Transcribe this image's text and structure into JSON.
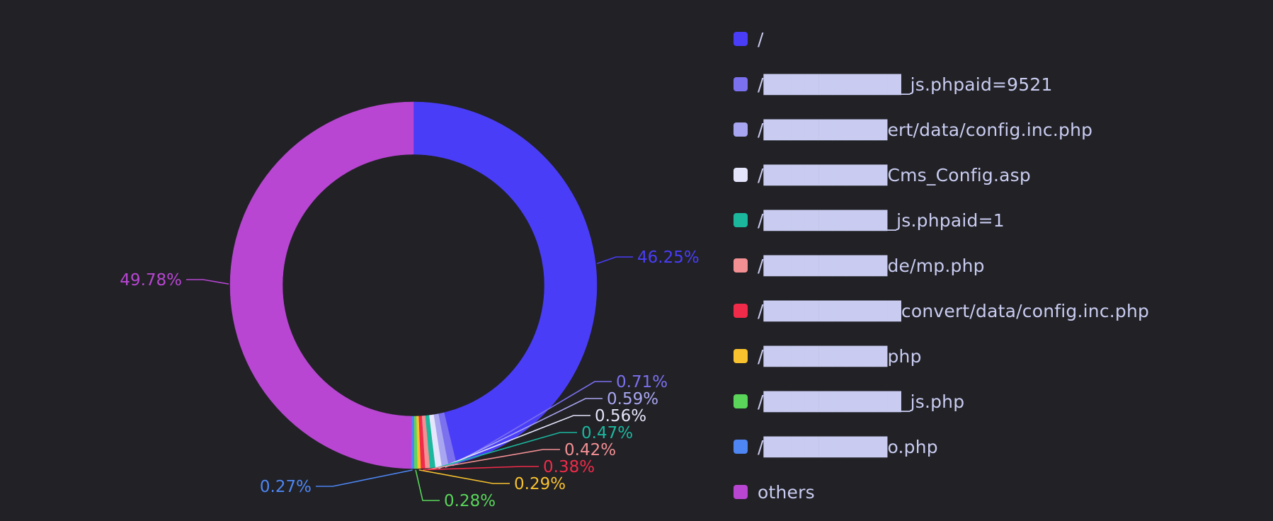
{
  "chart_data": {
    "type": "pie",
    "donut": true,
    "legend_position": "right",
    "series": [
      {
        "label": "/",
        "value": 46.25,
        "display": "46.25%",
        "color": "#4a3df8"
      },
      {
        "label": "/██████████_js.phpaid=9521",
        "value": 0.71,
        "display": "0.71%",
        "color": "#7b70ee"
      },
      {
        "label": "/█████████ert/data/config.inc.php",
        "value": 0.59,
        "display": "0.59%",
        "color": "#a9a6f1"
      },
      {
        "label": "/█████████Cms_Config.asp",
        "value": 0.56,
        "display": "0.56%",
        "color": "#e5e5fb"
      },
      {
        "label": "/█████████_js.phpaid=1",
        "value": 0.47,
        "display": "0.47%",
        "color": "#1bb89e"
      },
      {
        "label": "/█████████de/mp.php",
        "value": 0.42,
        "display": "0.42%",
        "color": "#f39094"
      },
      {
        "label": "/██████████convert/data/config.inc.php",
        "value": 0.38,
        "display": "0.38%",
        "color": "#f02b49"
      },
      {
        "label": "/█████████php",
        "value": 0.29,
        "display": "0.29%",
        "color": "#f8c12e"
      },
      {
        "label": "/██████████_js.php",
        "value": 0.28,
        "display": "0.28%",
        "color": "#5ad55a"
      },
      {
        "label": "/█████████o.php",
        "value": 0.27,
        "display": "0.27%",
        "color": "#4e86f3"
      },
      {
        "label": "others",
        "value": 49.78,
        "display": "49.78%",
        "color": "#b846d2"
      }
    ]
  }
}
